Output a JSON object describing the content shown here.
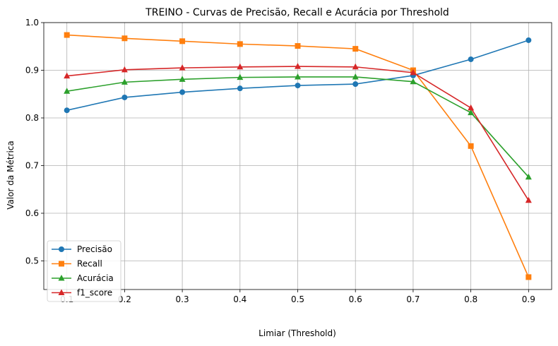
{
  "chart_data": {
    "type": "line",
    "title": "TREINO - Curvas de Precisão, Recall e Acurácia por Threshold",
    "xlabel": "Limiar (Threshold)",
    "ylabel": "Valor da Métrica",
    "x": [
      0.1,
      0.2,
      0.3,
      0.4,
      0.5,
      0.6,
      0.7,
      0.8,
      0.9
    ],
    "xlim": [
      0.06,
      0.94
    ],
    "ylim": [
      0.44,
      1.0
    ],
    "xticks": [
      "0.1",
      "0.2",
      "0.3",
      "0.4",
      "0.5",
      "0.6",
      "0.7",
      "0.8",
      "0.9"
    ],
    "yticks": [
      "0.5",
      "0.6",
      "0.7",
      "0.8",
      "0.9",
      "1.0"
    ],
    "grid": true,
    "legend_position": "bottom-left",
    "series": [
      {
        "name": "Precisão",
        "color": "#1f77b4",
        "marker": "circle",
        "values": [
          0.816,
          0.843,
          0.854,
          0.862,
          0.868,
          0.871,
          0.889,
          0.923,
          0.963
        ]
      },
      {
        "name": "Recall",
        "color": "#ff7f0e",
        "marker": "square",
        "values": [
          0.974,
          0.967,
          0.961,
          0.955,
          0.951,
          0.945,
          0.9,
          0.741,
          0.466
        ]
      },
      {
        "name": "Acurácia",
        "color": "#2ca02c",
        "marker": "triangle",
        "values": [
          0.856,
          0.875,
          0.881,
          0.885,
          0.886,
          0.886,
          0.876,
          0.811,
          0.676
        ]
      },
      {
        "name": "f1_score",
        "color": "#d62728",
        "marker": "triangle",
        "values": [
          0.888,
          0.901,
          0.905,
          0.907,
          0.908,
          0.907,
          0.895,
          0.821,
          0.627
        ]
      }
    ]
  }
}
